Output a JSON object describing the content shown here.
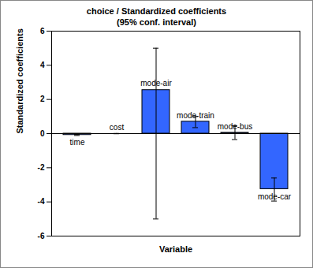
{
  "chart_data": {
    "type": "bar",
    "title": "choice / Standardized coefficients",
    "subtitle": "(95% conf. interval)",
    "x_label": "Variable",
    "y_label": "Standardized coefficients",
    "categories": [
      "time",
      "cost",
      "mode-air",
      "mode-train",
      "mode-bus",
      "mode-car"
    ],
    "values": [
      -0.08,
      0.0,
      2.55,
      0.7,
      0.05,
      -3.25
    ],
    "ci_lower": [
      -0.11,
      -0.01,
      -5.0,
      0.35,
      -0.35,
      -3.95
    ],
    "ci_upper": [
      -0.05,
      0.01,
      5.0,
      1.0,
      0.45,
      -2.6
    ],
    "color": "#3366ff",
    "ylim": [
      -6,
      6
    ],
    "yticks": [
      -6,
      -4,
      -2,
      0,
      2,
      4,
      6
    ],
    "grid": false,
    "tick_labels": "y"
  }
}
